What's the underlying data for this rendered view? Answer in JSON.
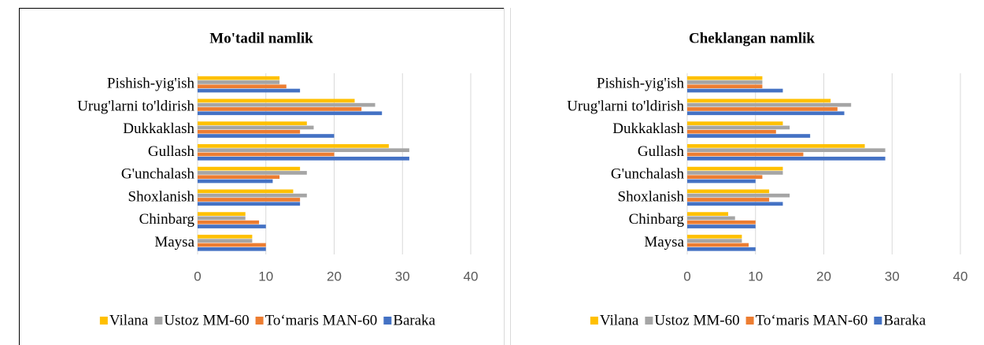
{
  "chart_data": [
    {
      "type": "bar",
      "orientation": "horizontal",
      "title": "Mo'tadil namlik",
      "categories": [
        "Pishish-yig'ish",
        "Urug'larni to'ldirish",
        "Dukkaklash",
        "Gullash",
        "G'unchalash",
        "Shoxlanish",
        "Chinbarg",
        "Maysa"
      ],
      "series": [
        {
          "name": "Vilana",
          "color": "#ffc000",
          "values": [
            12,
            23,
            16,
            28,
            15,
            14,
            7,
            8
          ]
        },
        {
          "name": "Ustoz MM-60",
          "color": "#a5a5a5",
          "values": [
            12,
            26,
            17,
            31,
            16,
            16,
            7,
            8
          ]
        },
        {
          "name": "To‘maris MAN-60",
          "color": "#ed7d31",
          "values": [
            13,
            24,
            15,
            20,
            12,
            15,
            9,
            10
          ]
        },
        {
          "name": "Baraka",
          "color": "#4472c4",
          "values": [
            15,
            27,
            20,
            31,
            11,
            15,
            10,
            10
          ]
        }
      ],
      "xlim": [
        0,
        40
      ],
      "xticks": [
        0,
        10,
        20,
        30,
        40
      ],
      "grid": true,
      "legend": "bottom"
    },
    {
      "type": "bar",
      "orientation": "horizontal",
      "title": "Cheklangan namlik",
      "categories": [
        "Pishish-yig'ish",
        "Urug'larni to'ldirish",
        "Dukkaklash",
        "Gullash",
        "G'unchalash",
        "Shoxlanish",
        "Chinbarg",
        "Maysa"
      ],
      "series": [
        {
          "name": "Vilana",
          "color": "#ffc000",
          "values": [
            11,
            21,
            14,
            26,
            14,
            12,
            6,
            8
          ]
        },
        {
          "name": "Ustoz MM-60",
          "color": "#a5a5a5",
          "values": [
            11,
            24,
            15,
            29,
            14,
            15,
            7,
            8
          ]
        },
        {
          "name": "To‘maris MAN-60",
          "color": "#ed7d31",
          "values": [
            11,
            22,
            13,
            17,
            11,
            12,
            10,
            9
          ]
        },
        {
          "name": "Baraka",
          "color": "#4472c4",
          "values": [
            14,
            23,
            18,
            29,
            10,
            14,
            10,
            10
          ]
        }
      ],
      "xlim": [
        0,
        40
      ],
      "xticks": [
        0,
        10,
        20,
        30,
        40
      ],
      "grid": true,
      "legend": "bottom"
    }
  ]
}
